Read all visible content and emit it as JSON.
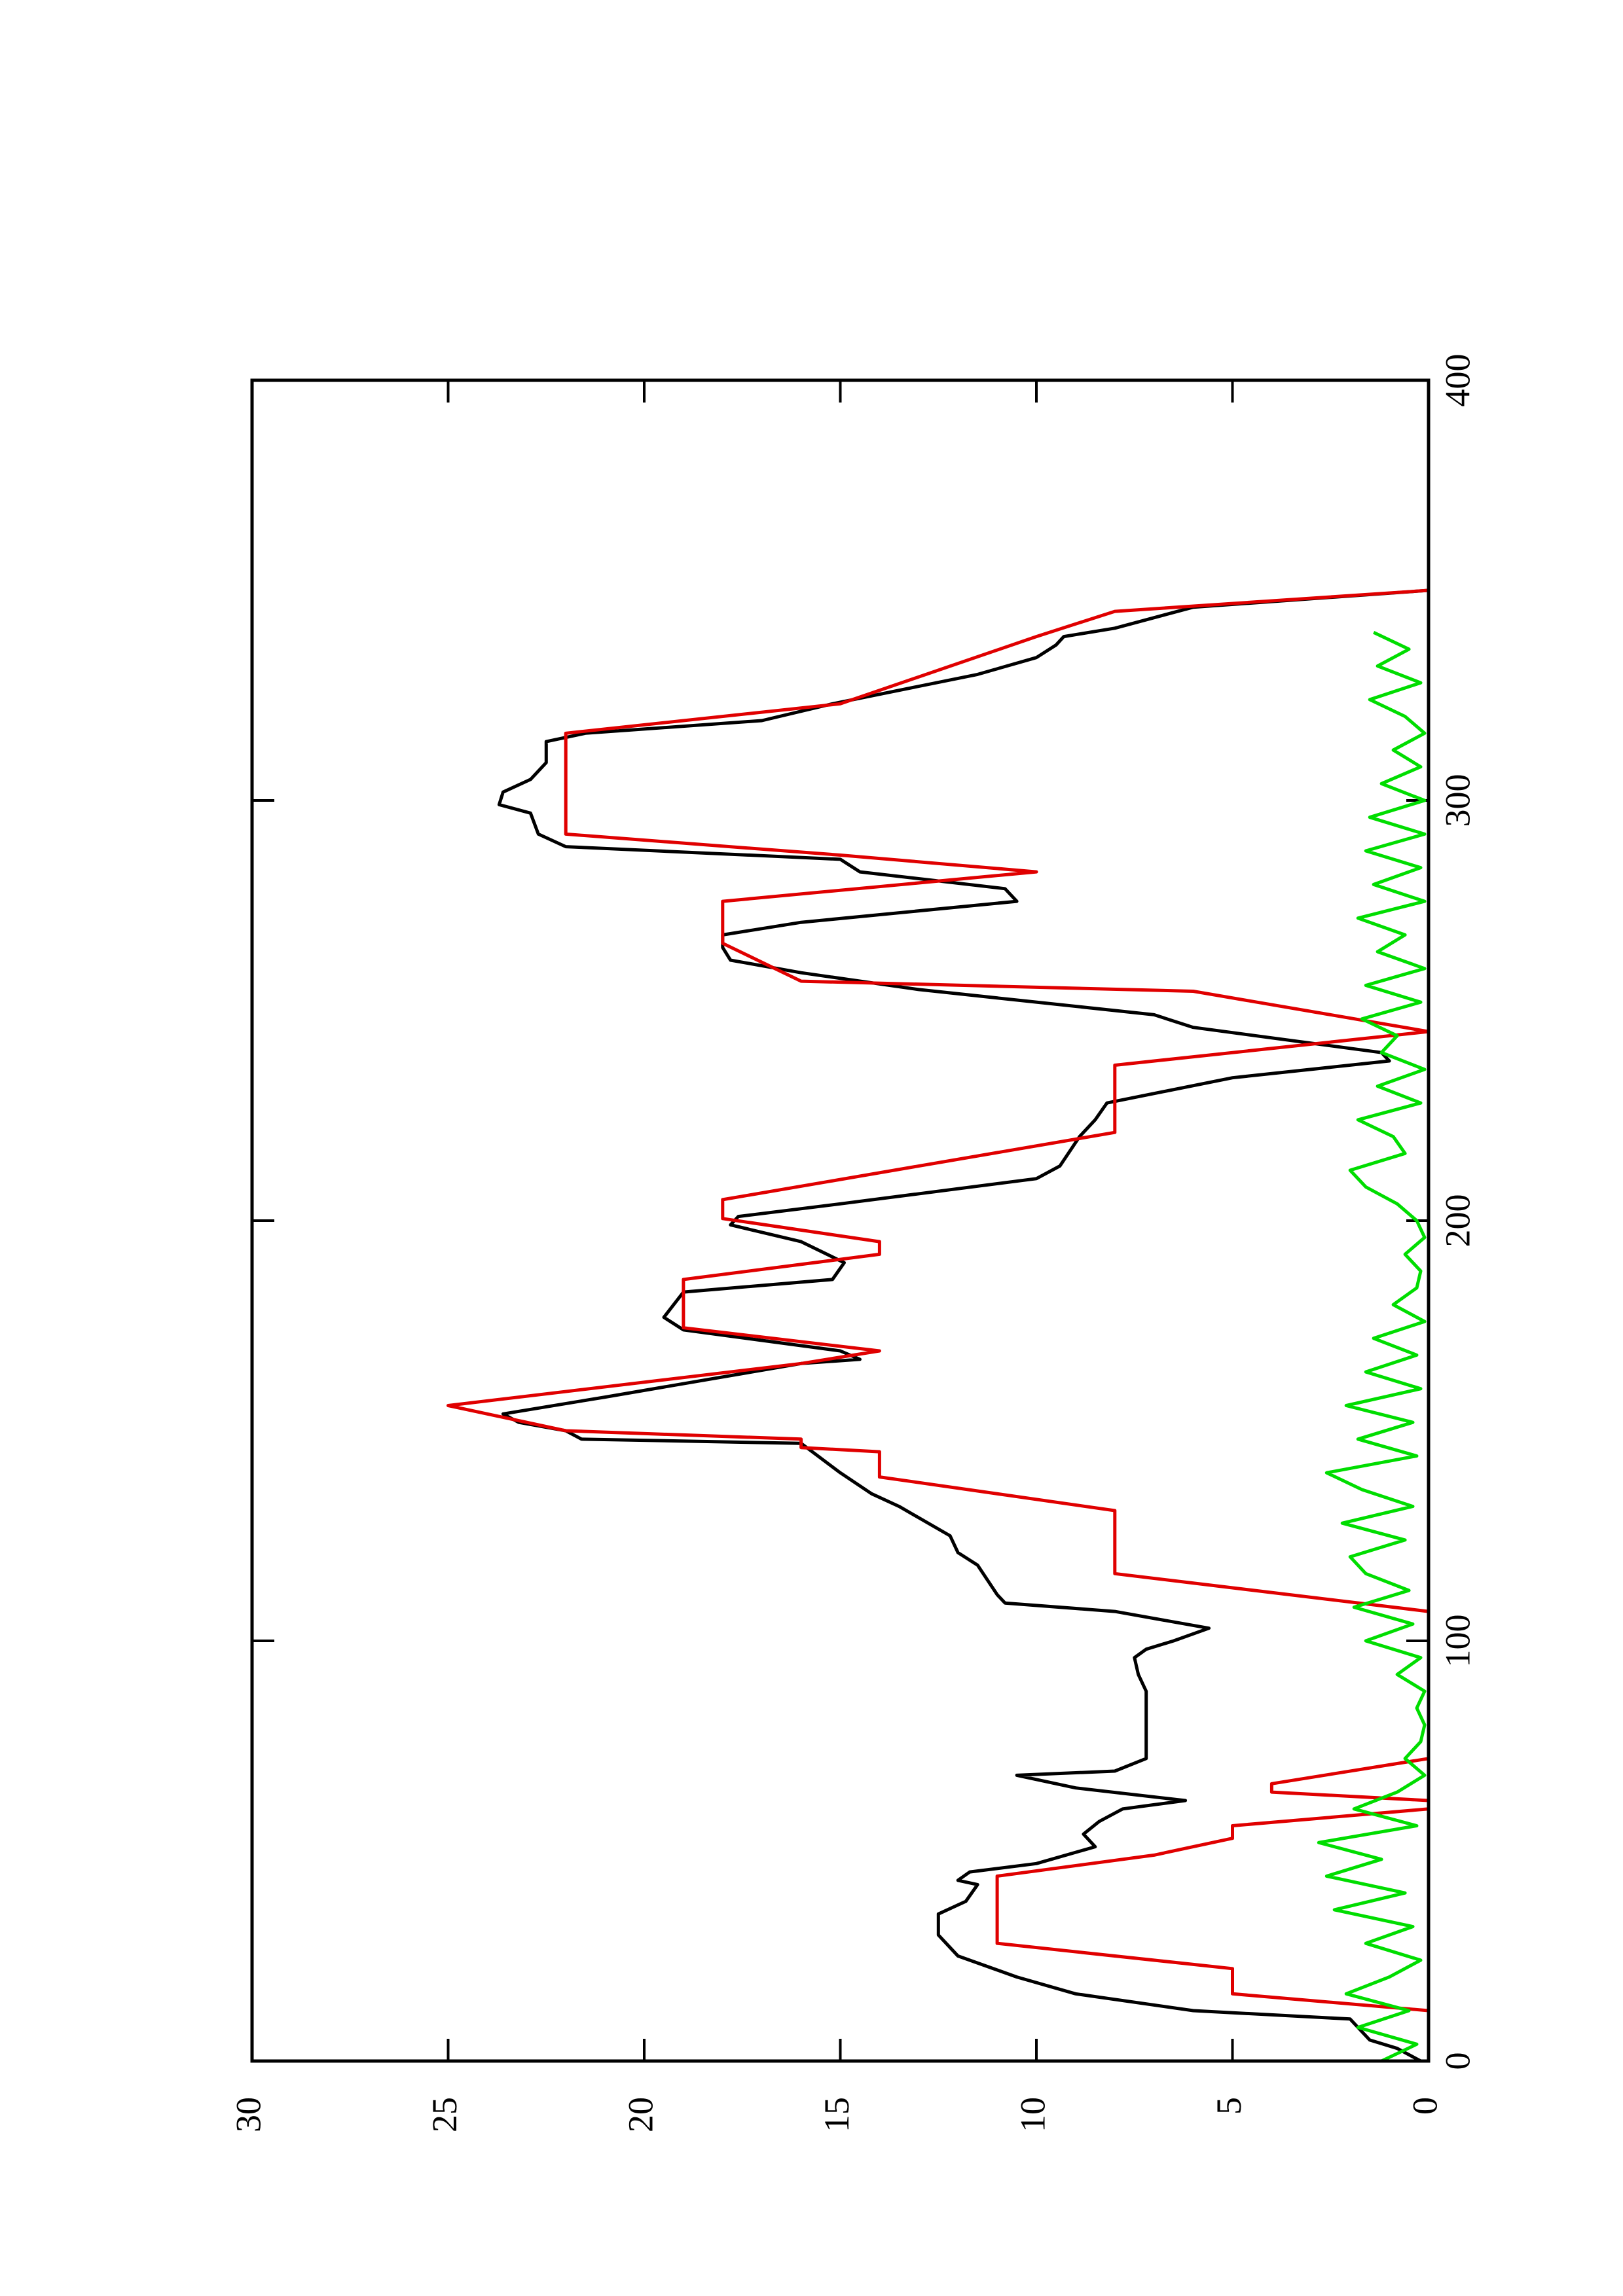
{
  "chart_data": {
    "type": "line",
    "xlim": [
      0,
      400
    ],
    "xticks": [
      0,
      100,
      200,
      300,
      400
    ],
    "ylim": [
      0,
      30
    ],
    "yticks": [
      0,
      5,
      10,
      15,
      20,
      25,
      30
    ],
    "series": [
      {
        "color": "#000000",
        "x": [
          0,
          3,
          5,
          10,
          12,
          16,
          20,
          25,
          30,
          35,
          38,
          42,
          43,
          45,
          47,
          51,
          54,
          57,
          60,
          61,
          62,
          65,
          68,
          69,
          72,
          88,
          92,
          96,
          98,
          100,
          103,
          107,
          109,
          111,
          118,
          121,
          125,
          132,
          135,
          140,
          147,
          148,
          150,
          152,
          154,
          158,
          166,
          167,
          169,
          174,
          177,
          183,
          186,
          190,
          195,
          199,
          201,
          204,
          210,
          213,
          220,
          224,
          228,
          234,
          238,
          240,
          246,
          249,
          255,
          259,
          262,
          265,
          268,
          271,
          276,
          279,
          283,
          286,
          289,
          292,
          297,
          299,
          302,
          305,
          309,
          314,
          316,
          319,
          323,
          330,
          334,
          337,
          339,
          341,
          346,
          350
        ],
        "values": [
          0.2,
          0.8,
          1.5,
          2,
          6,
          9,
          10.5,
          12,
          12.5,
          12.5,
          11.8,
          11.5,
          12,
          11.7,
          10,
          8.5,
          8.8,
          8.4,
          7.8,
          7,
          6.2,
          9,
          10.5,
          8,
          7.2,
          7.2,
          7.4,
          7.5,
          7.2,
          6.5,
          5.6,
          8,
          10.8,
          11,
          11.5,
          12,
          12.2,
          13.5,
          14.2,
          15,
          16,
          21.6,
          22,
          23.2,
          23.6,
          21,
          16,
          14.5,
          15,
          19,
          19.5,
          19,
          15.2,
          14.9,
          16,
          17.8,
          17.6,
          15,
          10,
          9.4,
          8.9,
          8.5,
          8.2,
          5,
          1,
          1.2,
          6,
          7,
          13,
          16,
          17.8,
          18,
          18,
          16,
          10.5,
          10.8,
          14.5,
          15,
          22,
          22.7,
          22.9,
          23.7,
          23.6,
          22.9,
          22.5,
          22.5,
          21.5,
          17,
          15.2,
          11.5,
          10,
          9.5,
          9.3,
          8,
          6,
          0
        ]
      },
      {
        "color": "#e00000",
        "x": [
          0,
          12,
          16,
          22,
          28,
          44,
          49,
          53,
          56,
          60,
          62,
          64,
          66,
          72,
          107,
          116,
          131,
          139,
          145,
          146,
          148,
          150,
          156,
          166,
          169,
          174.5,
          186,
          192,
          195,
          200.5,
          205,
          221,
          237,
          245,
          254.6,
          257,
          266,
          276,
          283,
          287,
          292,
          316,
          323,
          339,
          345,
          350
        ],
        "values": [
          0,
          0,
          5,
          5,
          11,
          11,
          7,
          5,
          5,
          0,
          0,
          4,
          4,
          0,
          0,
          8,
          8,
          14,
          14,
          16,
          16,
          22,
          25,
          16,
          14,
          19,
          19,
          14,
          14,
          18,
          18,
          8,
          8,
          0,
          6,
          16,
          18,
          18,
          10,
          15,
          22,
          22,
          15,
          10,
          8,
          0
        ]
      },
      {
        "color": "#00dd00",
        "x": [
          0,
          4,
          8,
          12,
          16,
          20,
          24,
          28,
          32,
          36,
          40,
          44,
          48,
          52,
          56,
          60,
          64,
          68,
          72,
          76,
          80,
          84,
          88,
          92,
          96,
          100,
          104,
          108,
          112,
          116,
          120,
          124,
          128,
          132,
          136,
          140,
          144,
          148,
          152,
          156,
          160,
          164,
          168,
          172,
          176,
          180,
          184,
          188,
          192,
          196,
          200,
          204,
          208,
          212,
          216,
          220,
          224,
          228,
          232,
          236,
          240,
          244,
          248,
          252,
          256,
          260,
          264,
          268,
          272,
          276,
          280,
          284,
          288,
          292,
          296,
          300,
          304,
          308,
          312,
          316,
          320,
          324,
          328,
          332,
          336,
          340
        ],
        "values": [
          1.2,
          0.3,
          1.8,
          0.5,
          2.1,
          1,
          0.2,
          1.6,
          0.4,
          2.4,
          0.6,
          2.6,
          1.2,
          2.8,
          0.3,
          1.9,
          0.8,
          0.1,
          0.6,
          0.2,
          0.1,
          0.3,
          0.1,
          0.8,
          0.2,
          1.6,
          0.4,
          1.9,
          0.5,
          1.6,
          2,
          0.6,
          2.2,
          0.4,
          1.7,
          2.6,
          0.3,
          1.8,
          0.4,
          2.1,
          0.2,
          1.6,
          0.3,
          1.4,
          0.1,
          0.9,
          0.3,
          0.2,
          0.6,
          0.1,
          0.3,
          0.8,
          1.6,
          2,
          0.6,
          0.9,
          1.8,
          0.2,
          1.3,
          0.1,
          1.2,
          0.8,
          1.7,
          0.2,
          1.6,
          0.1,
          1.3,
          0.6,
          1.8,
          0.1,
          1.4,
          0.2,
          1.6,
          0.1,
          1.5,
          0.1,
          1.2,
          0.2,
          0.9,
          0.1,
          0.6,
          1.5,
          0.2,
          1.3,
          0.5,
          1.4
        ]
      }
    ]
  }
}
